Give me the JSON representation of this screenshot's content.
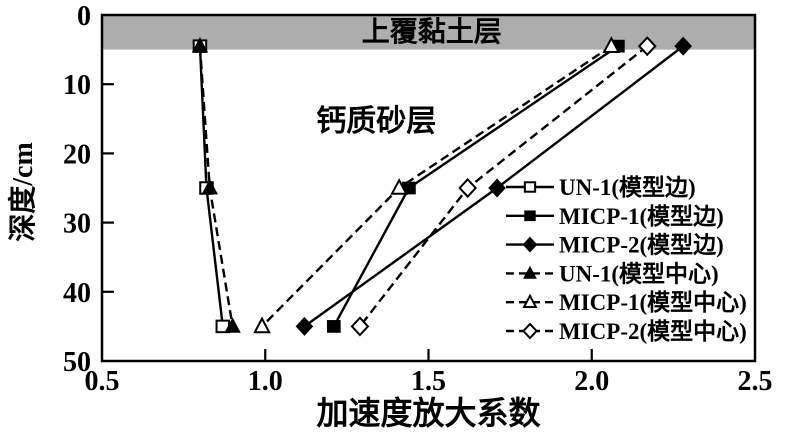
{
  "figure": {
    "description": "Depth vs acceleration amplification factor profile with overlying clay layer band"
  },
  "chart_data": {
    "type": "line",
    "xlabel": "加速度放大系数",
    "ylabel": "深度/cm",
    "xlim": [
      0.5,
      2.5
    ],
    "ylim": [
      0,
      50
    ],
    "y_inverted": true,
    "grid": false,
    "legend_position": "inside-right",
    "x_ticks": [
      "0.5",
      "1.0",
      "1.5",
      "2.0",
      "2.5"
    ],
    "y_ticks": [
      "0",
      "10",
      "20",
      "30",
      "40",
      "50"
    ],
    "clay_layer": {
      "depth_range": [
        0,
        5
      ]
    },
    "annotations": [
      {
        "label": "上覆黏土层",
        "x": 1.51,
        "depth": 2.3
      },
      {
        "label": "钙质砂层",
        "x": 1.34,
        "depth": 15.2
      }
    ],
    "series": [
      {
        "id": "un1-edge",
        "label": "UN-1(模型边)",
        "marker": "square-open",
        "line": "solid",
        "points": [
          [
            0.8,
            4.5
          ],
          [
            0.82,
            25
          ],
          [
            0.87,
            45
          ]
        ]
      },
      {
        "id": "micp1-edge",
        "label": "MICP-1(模型边)",
        "marker": "square-filled",
        "line": "solid",
        "points": [
          [
            2.08,
            4.5
          ],
          [
            1.44,
            25
          ],
          [
            1.21,
            45
          ]
        ]
      },
      {
        "id": "micp2-edge",
        "label": "MICP-2(模型边)",
        "marker": "diamond-filled",
        "line": "solid",
        "points": [
          [
            2.28,
            4.5
          ],
          [
            1.71,
            25
          ],
          [
            1.12,
            45
          ]
        ]
      },
      {
        "id": "un1-center",
        "label": "UN-1(模型中心)",
        "marker": "triangle-filled",
        "line": "dashed",
        "points": [
          [
            0.8,
            4.5
          ],
          [
            0.83,
            25
          ],
          [
            0.9,
            45
          ]
        ]
      },
      {
        "id": "micp1-center",
        "label": "MICP-1(模型中心)",
        "marker": "triangle-open",
        "line": "dashed",
        "points": [
          [
            2.06,
            4.5
          ],
          [
            1.41,
            25
          ],
          [
            0.99,
            45
          ]
        ]
      },
      {
        "id": "micp2-center",
        "label": "MICP-2(模型中心)",
        "marker": "diamond-open",
        "line": "dashed",
        "points": [
          [
            2.17,
            4.5
          ],
          [
            1.62,
            25
          ],
          [
            1.29,
            45
          ]
        ]
      }
    ],
    "colors": {
      "line": "#000000",
      "clay_band": "#adadad",
      "background": "#ffffff"
    }
  }
}
